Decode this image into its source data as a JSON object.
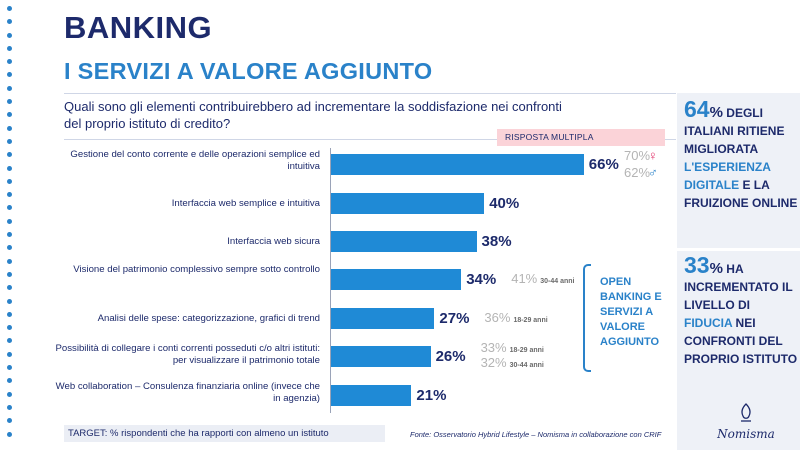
{
  "header": {
    "title": "BANKING",
    "subtitle": "I SERVIZI A VALORE AGGIUNTO",
    "question": "Quali sono gli elementi contribuirebbero ad incrementare la soddisfazione nei confronti del proprio istituto di credito?",
    "badge": "RISPOSTA MULTIPLA"
  },
  "gender": {
    "female_value": "70%",
    "male_value": "62%",
    "female_icon": "female-symbol-icon",
    "male_icon": "male-symbol-icon"
  },
  "annotations": {
    "open_banking": "OPEN BANKING E SERVIZI A VALORE AGGIUNTO"
  },
  "side_panel": {
    "stat1_number": "64",
    "stat1_pct": "%",
    "stat1_text_a": " DEGLI ITALIANI RITIENE MIGLIORATA ",
    "stat1_highlight": "L'ESPERIENZA DIGITALE",
    "stat1_text_b": " E LA FRUIZIONE ONLINE",
    "stat2_number": "33",
    "stat2_pct": "%",
    "stat2_text_a": " HA INCREMENTATO IL LIVELLO DI ",
    "stat2_highlight": "FIDUCIA",
    "stat2_text_b": " NEI CONFRONTI DEL PROPRIO ISTITUTO"
  },
  "footer": {
    "target": "TARGET: % rispondenti che ha rapporti con almeno un istituto",
    "source": "Fonte: Osservatorio Hybrid Lifestyle – Nomisma in collaborazione con CRIF",
    "logo_text": "Nomisma"
  },
  "colors": {
    "bar": "#1f8ad6",
    "accent": "#2a82c9",
    "navy": "#1d2a6b",
    "female": "#e2336b"
  },
  "chart_data": {
    "type": "bar",
    "orientation": "horizontal",
    "categories": [
      "Gestione del conto corrente e delle operazioni semplice ed intuitiva",
      "Interfaccia web semplice e intuitiva",
      "Interfaccia web sicura",
      "Visione del patrimonio complessivo sempre sotto controllo",
      "Analisi delle spese: categorizzazione, grafici di trend",
      "Possibilità di collegare i conti correnti posseduti c/o altri istituti: per visualizzare il patrimonio totale",
      "Web collaboration – Consulenza finanziaria online (invece che in agenzia)"
    ],
    "values": [
      66,
      40,
      38,
      34,
      27,
      26,
      21
    ],
    "value_labels": [
      "66%",
      "40%",
      "38%",
      "34%",
      "27%",
      "26%",
      "21%"
    ],
    "segment_values": [
      [],
      [],
      [],
      [
        {
          "value": "41%",
          "group": "30-44 anni"
        }
      ],
      [
        {
          "value": "36%",
          "group": "18-29 anni"
        }
      ],
      [
        {
          "value": "33%",
          "group": "18-29 anni"
        },
        {
          "value": "32%",
          "group": "30-44 anni"
        }
      ],
      []
    ],
    "xlim": [
      0,
      100
    ]
  }
}
